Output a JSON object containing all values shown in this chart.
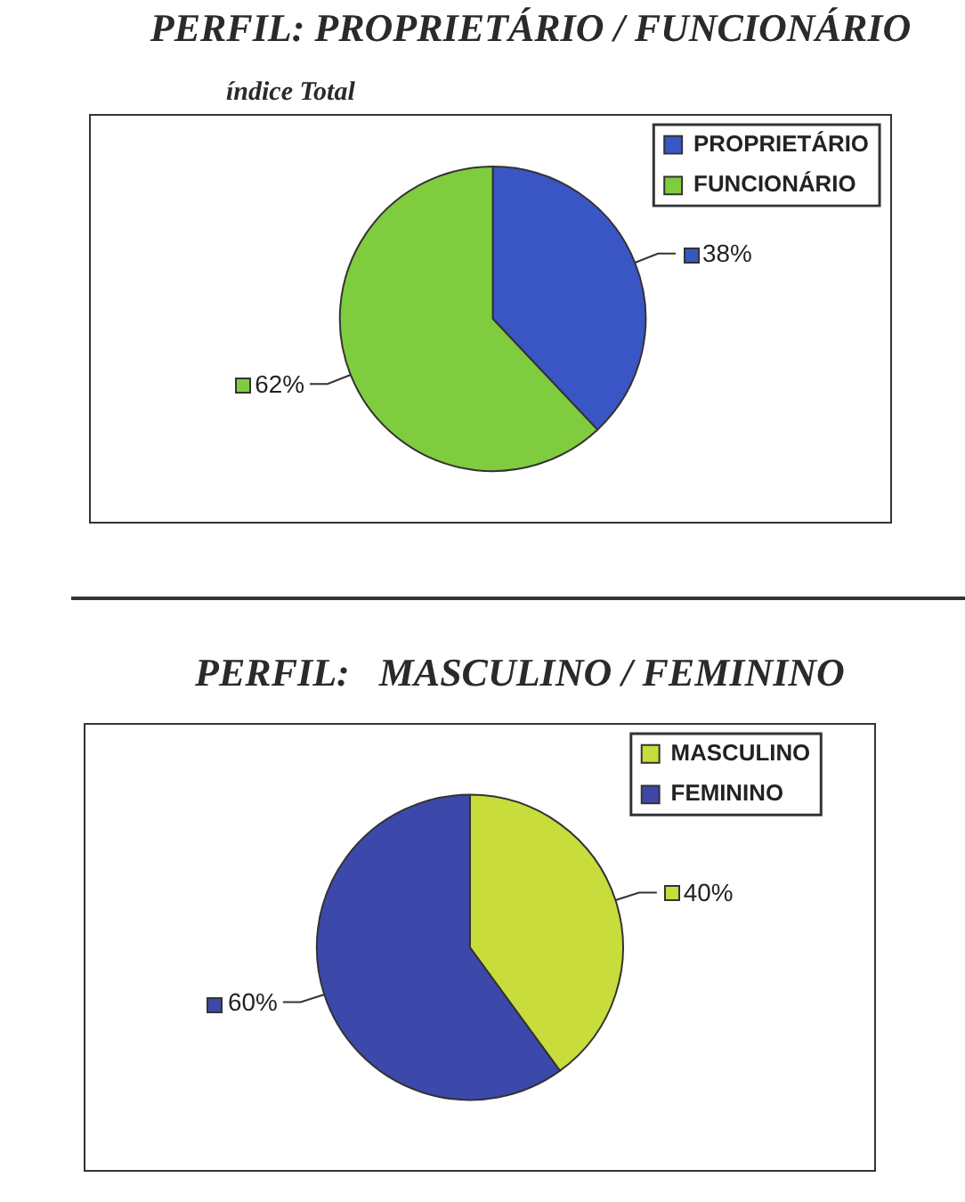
{
  "chart_data": [
    {
      "type": "pie",
      "title": "PERFIL: PROPRIETÁRIO / FUNCIONÁRIO",
      "subtitle": "índice Total",
      "categories": [
        "PROPRIETÁRIO",
        "FUNCIONÁRIO"
      ],
      "values": [
        38,
        62
      ],
      "colors": [
        "#3a55c4",
        "#7fcc3f"
      ],
      "value_labels": [
        "38%",
        "62%"
      ],
      "legend": "top right"
    },
    {
      "type": "pie",
      "title": "PERFIL:   MASCULINO / FEMININO",
      "categories": [
        "MASCULINO",
        "FEMININO"
      ],
      "values": [
        40,
        60
      ],
      "colors": [
        "#c8dc3c",
        "#3c48aa"
      ],
      "value_labels": [
        "40%",
        "60%"
      ],
      "legend": "top right"
    }
  ]
}
